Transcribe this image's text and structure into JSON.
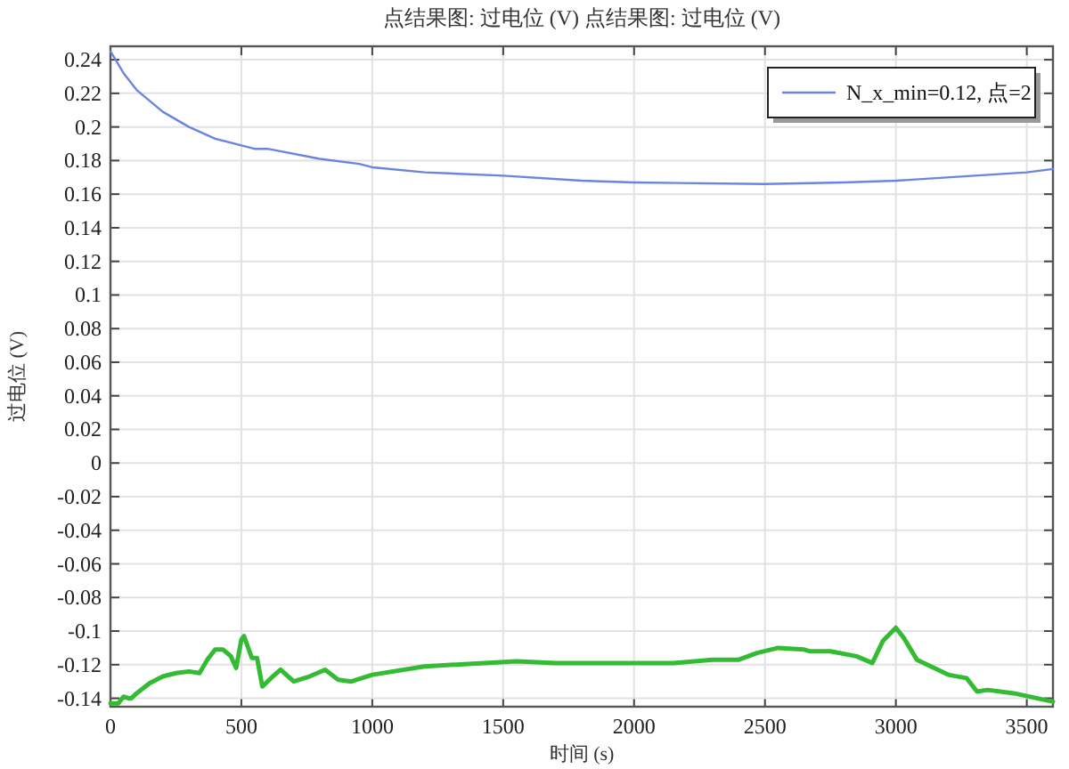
{
  "chart_data": {
    "type": "line",
    "title": "点结果图: 过电位 (V)  点结果图: 过电位 (V)",
    "xlabel": "时间 (s)",
    "ylabel": "过电位 (V)",
    "xlim": [
      0,
      3600
    ],
    "ylim": [
      -0.145,
      0.248
    ],
    "xticks": [
      0,
      500,
      1000,
      1500,
      2000,
      2500,
      3000,
      3500
    ],
    "yticks": [
      -0.14,
      -0.12,
      -0.1,
      -0.08,
      -0.06,
      -0.04,
      -0.02,
      0,
      0.02,
      0.04,
      0.06,
      0.08,
      0.1,
      0.12,
      0.14,
      0.16,
      0.18,
      0.2,
      0.22,
      0.24
    ],
    "grid": true,
    "legend": "top right",
    "series": [
      {
        "name": "N_x_min=0.12, 点=2",
        "color": "#6a85e0",
        "x": [
          0,
          50,
          100,
          200,
          300,
          400,
          500,
          550,
          600,
          800,
          950,
          1000,
          1200,
          1500,
          1800,
          2000,
          2500,
          2800,
          3000,
          3300,
          3500,
          3600
        ],
        "values": [
          0.245,
          0.232,
          0.222,
          0.209,
          0.2,
          0.193,
          0.189,
          0.187,
          0.187,
          0.181,
          0.178,
          0.176,
          0.173,
          0.171,
          0.168,
          0.167,
          0.166,
          0.167,
          0.168,
          0.171,
          0.173,
          0.175
        ]
      },
      {
        "color": "#33bb33",
        "x": [
          0,
          30,
          50,
          70,
          80,
          100,
          150,
          200,
          250,
          300,
          340,
          370,
          400,
          430,
          460,
          480,
          500,
          510,
          540,
          560,
          580,
          620,
          650,
          700,
          760,
          820,
          870,
          920,
          1000,
          1200,
          1550,
          1700,
          2000,
          2150,
          2300,
          2400,
          2470,
          2550,
          2650,
          2670,
          2750,
          2850,
          2910,
          2950,
          3000,
          3030,
          3080,
          3200,
          3270,
          3310,
          3350,
          3450,
          3600
        ],
        "values": [
          -0.143,
          -0.143,
          -0.139,
          -0.14,
          -0.14,
          -0.137,
          -0.131,
          -0.127,
          -0.125,
          -0.124,
          -0.125,
          -0.117,
          -0.111,
          -0.111,
          -0.115,
          -0.122,
          -0.105,
          -0.103,
          -0.116,
          -0.116,
          -0.133,
          -0.127,
          -0.123,
          -0.13,
          -0.127,
          -0.123,
          -0.129,
          -0.13,
          -0.126,
          -0.121,
          -0.118,
          -0.119,
          -0.119,
          -0.119,
          -0.117,
          -0.117,
          -0.113,
          -0.11,
          -0.111,
          -0.112,
          -0.112,
          -0.115,
          -0.119,
          -0.106,
          -0.098,
          -0.104,
          -0.117,
          -0.126,
          -0.128,
          -0.136,
          -0.135,
          -0.137,
          -0.142
        ]
      }
    ]
  }
}
